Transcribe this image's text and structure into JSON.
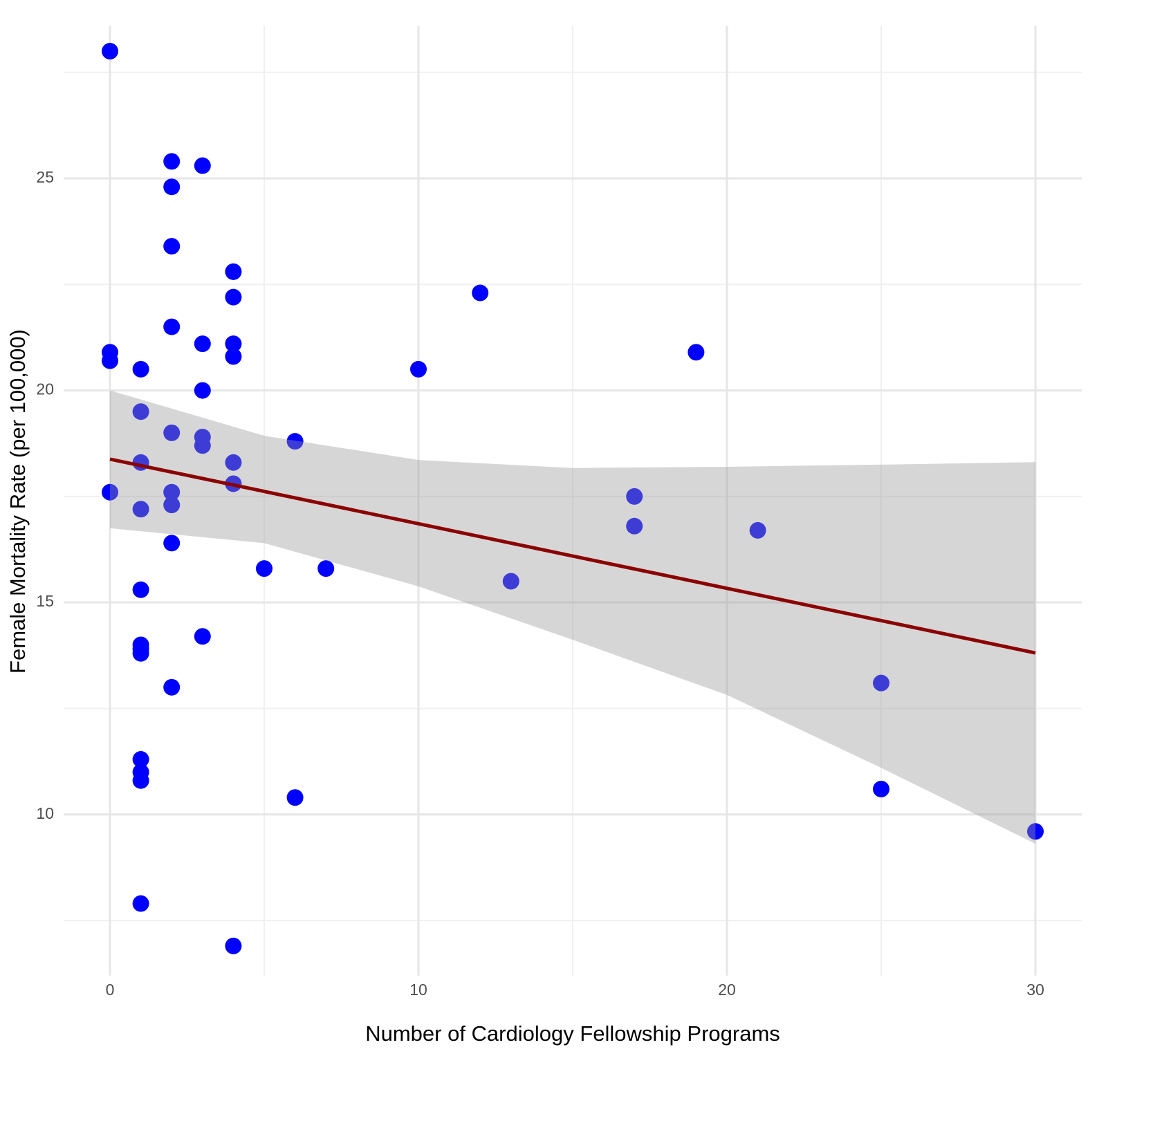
{
  "chart_data": {
    "type": "scatter",
    "x_label": "Number of Cardiology Fellowship Programs",
    "y_label": "Female Mortality Rate (per 100,000)",
    "xlim": [
      -1.5,
      31.5
    ],
    "ylim": [
      6.2,
      28.6
    ],
    "xticks": [
      0,
      10,
      20,
      30
    ],
    "yticks": [
      10,
      15,
      20,
      25
    ],
    "xminor": [
      5,
      15,
      25
    ],
    "yminor": [
      7.5,
      12.5,
      17.5,
      22.5,
      27.5
    ],
    "grid": true,
    "color": "#0000ff",
    "x": [
      0,
      2,
      3,
      2,
      2,
      4,
      4,
      12,
      2,
      3,
      4,
      4,
      0,
      0,
      1,
      10,
      19,
      3,
      1,
      2,
      3,
      3,
      6,
      1,
      4,
      4,
      0,
      2,
      2,
      1,
      17,
      17,
      21,
      2,
      5,
      7,
      13,
      1,
      3,
      1,
      1,
      1,
      2,
      25,
      1,
      1,
      1,
      6,
      25,
      30,
      1,
      4
    ],
    "y": [
      28.0,
      25.4,
      25.3,
      24.8,
      23.4,
      22.8,
      22.2,
      22.3,
      21.5,
      21.1,
      21.1,
      20.8,
      20.9,
      20.7,
      20.5,
      20.5,
      20.9,
      20.0,
      19.5,
      19.0,
      18.9,
      18.7,
      18.8,
      18.3,
      18.3,
      17.8,
      17.6,
      17.6,
      17.3,
      17.2,
      17.5,
      16.8,
      16.7,
      16.4,
      15.8,
      15.8,
      15.5,
      15.3,
      14.2,
      14.0,
      13.9,
      13.8,
      13.0,
      13.1,
      11.3,
      11.0,
      10.8,
      10.4,
      10.6,
      9.6,
      7.9,
      6.9
    ],
    "regression": {
      "color": "#8b0000",
      "x": [
        0,
        30
      ],
      "y": [
        18.38,
        13.81
      ]
    },
    "band": {
      "color": "#999999",
      "x": [
        0,
        5,
        10,
        15,
        20,
        25,
        30
      ],
      "upper": [
        20.0,
        18.93,
        18.36,
        18.17,
        18.2,
        18.25,
        18.31
      ],
      "lower": [
        16.75,
        16.4,
        15.38,
        14.12,
        12.82,
        11.1,
        9.31
      ]
    }
  }
}
